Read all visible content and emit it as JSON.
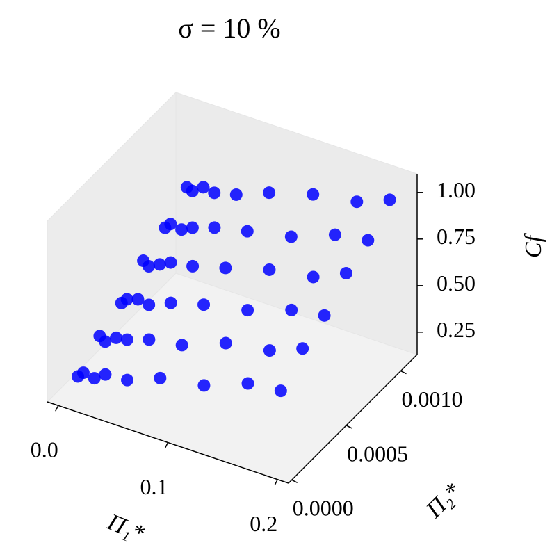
{
  "chart_data": {
    "type": "scatter3d",
    "title": "σ = 10 %",
    "x_label": "Π₁*",
    "y_label": "Π₂*",
    "z_label": "Cf",
    "color": "#0000ff",
    "xlim": [
      -0.01,
      0.21
    ],
    "ylim": [
      -3e-05,
      0.00115
    ],
    "zlim": [
      0.13,
      1.1
    ],
    "xticks": [
      {
        "value": 0,
        "label": "0.0"
      },
      0.1,
      0.2
    ],
    "yticks": [
      {
        "value": 0,
        "label": "0.0000"
      },
      {
        "value": 0.0005,
        "label": "0.0005"
      },
      {
        "value": 0.001,
        "label": "0.0010"
      }
    ],
    "zticks": [
      0.25,
      {
        "value": 0.5,
        "label": "0.50"
      },
      0.75,
      {
        "value": 1,
        "label": "1.00"
      }
    ],
    "x": [
      0.005,
      0.01,
      0.02,
      0.03,
      0.05,
      0.08,
      0.12,
      0.16,
      0.19,
      0.005,
      0.01,
      0.02,
      0.03,
      0.05,
      0.08,
      0.12,
      0.16,
      0.19,
      0.005,
      0.01,
      0.02,
      0.03,
      0.05,
      0.08,
      0.12,
      0.16,
      0.19,
      0.005,
      0.01,
      0.02,
      0.03,
      0.05,
      0.08,
      0.12,
      0.16,
      0.19,
      0.005,
      0.01,
      0.02,
      0.03,
      0.05,
      0.08,
      0.12,
      0.16,
      0.19,
      0.005,
      0.01,
      0.02,
      0.03,
      0.05,
      0.08,
      0.12,
      0.16,
      0.19
    ],
    "y": [
      0.0011,
      0.0011,
      0.0011,
      0.0011,
      0.0011,
      0.0011,
      0.0011,
      0.0011,
      0.0011,
      0.0009,
      0.0009,
      0.0009,
      0.0009,
      0.0009,
      0.0009,
      0.0009,
      0.0009,
      0.0009,
      0.0007,
      0.0007,
      0.0007,
      0.0007,
      0.0007,
      0.0007,
      0.0007,
      0.0007,
      0.0007,
      0.0005,
      0.0005,
      0.0005,
      0.0005,
      0.0005,
      0.0005,
      0.0005,
      0.0005,
      0.0005,
      0.0003,
      0.0003,
      0.0003,
      0.0003,
      0.0003,
      0.0003,
      0.0003,
      0.0003,
      0.0003,
      0.0001,
      0.0001,
      0.0001,
      0.0001,
      0.0001,
      0.0001,
      0.0001,
      0.0001,
      0.0001
    ],
    "z": [
      0.65,
      0.64,
      0.68,
      0.67,
      0.7,
      0.77,
      0.84,
      0.88,
      0.95,
      0.55,
      0.58,
      0.57,
      0.6,
      0.64,
      0.68,
      0.73,
      0.82,
      0.85,
      0.49,
      0.47,
      0.5,
      0.53,
      0.55,
      0.6,
      0.67,
      0.71,
      0.79,
      0.38,
      0.41,
      0.43,
      0.42,
      0.47,
      0.52,
      0.57,
      0.65,
      0.68,
      0.32,
      0.3,
      0.34,
      0.35,
      0.39,
      0.42,
      0.51,
      0.55,
      0.62,
      0.22,
      0.25,
      0.24,
      0.28,
      0.29,
      0.36,
      0.4,
      0.49,
      0.51
    ]
  }
}
